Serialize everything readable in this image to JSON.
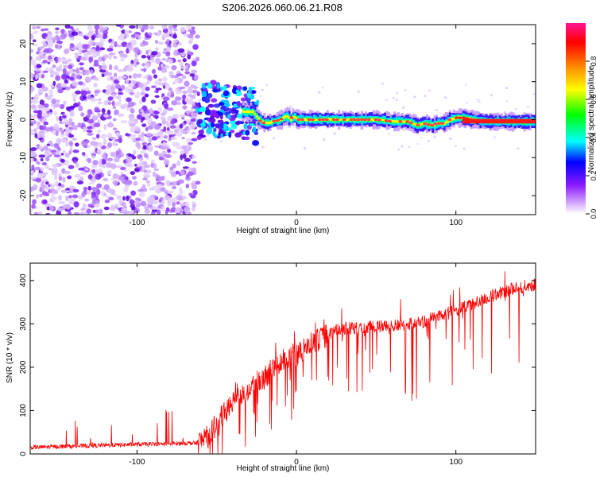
{
  "title": "S206.2026.060.06.21.R08",
  "chart_data": [
    {
      "type": "heatmap",
      "title": "S206.2026.060.06.21.R08",
      "xlabel": "Height of straight line (km)",
      "ylabel": "Frequency (Hz)",
      "xlim": [
        -167,
        150
      ],
      "ylim": [
        -25,
        25
      ],
      "xticks": [
        -100,
        0,
        100
      ],
      "yticks": [
        -20,
        -10,
        0,
        10,
        20
      ],
      "colorbar": {
        "label": "Normalized spectral amplitude",
        "range": [
          0,
          1
        ],
        "ticks": [
          0.0,
          0.2,
          0.4,
          0.6,
          0.8
        ],
        "colors": [
          "#ffffff",
          "#d9b3ff",
          "#8c1aff",
          "#0000ff",
          "#00ffff",
          "#00ff00",
          "#ffff00",
          "#ff8000",
          "#ff0000",
          "#ff1493"
        ]
      },
      "noise_region_x": [
        -167,
        -62
      ],
      "center_line": {
        "x": [
          -62,
          -55,
          -45,
          -38,
          -33,
          -28,
          -24,
          -20,
          -15,
          -10,
          -7,
          -4,
          -2,
          0,
          5,
          10,
          20,
          30,
          40,
          50,
          60,
          70,
          75,
          80,
          85,
          88,
          92,
          96,
          100,
          105,
          110,
          120,
          130,
          140,
          150
        ],
        "y": [
          1,
          3,
          2,
          3,
          2,
          2,
          0,
          -1,
          -0.5,
          0,
          1,
          0,
          1,
          0,
          0,
          0,
          0,
          0,
          0,
          0,
          -0.5,
          -0.5,
          -1.5,
          -1,
          -1.5,
          -1,
          -1,
          0,
          0.5,
          0.5,
          0,
          -0.5,
          -0.5,
          -0.5,
          -0.5
        ]
      }
    },
    {
      "type": "line",
      "xlabel": "Height of straight line (km)",
      "ylabel": "SNR (10 * v/v)",
      "xlim": [
        -167,
        150
      ],
      "ylim": [
        0,
        440
      ],
      "xticks": [
        -100,
        0,
        100
      ],
      "yticks": [
        0,
        100,
        200,
        300,
        400
      ],
      "series": [
        {
          "name": "SNR",
          "color": "#ff0000",
          "x": [
            -167,
            -140,
            -120,
            -100,
            -85,
            -70,
            -62,
            -55,
            -50,
            -45,
            -40,
            -35,
            -30,
            -25,
            -20,
            -15,
            -10,
            -5,
            0,
            5,
            10,
            15,
            20,
            25,
            30,
            40,
            50,
            60,
            70,
            80,
            90,
            100,
            110,
            120,
            130,
            140,
            150
          ],
          "values": [
            15,
            18,
            20,
            22,
            23,
            25,
            25,
            40,
            70,
            95,
            115,
            130,
            150,
            165,
            175,
            195,
            210,
            225,
            230,
            240,
            255,
            265,
            275,
            285,
            290,
            290,
            295,
            295,
            300,
            305,
            320,
            330,
            345,
            360,
            375,
            385,
            390
          ]
        }
      ]
    }
  ]
}
